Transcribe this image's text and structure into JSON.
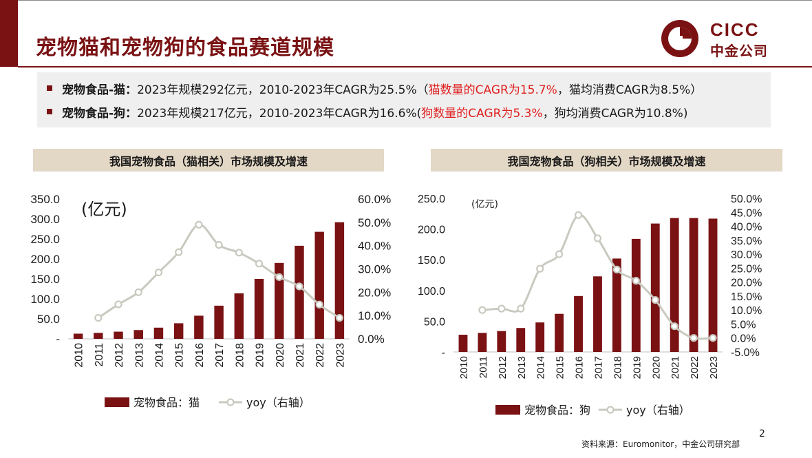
{
  "slide": {
    "title": "宠物猫和宠物狗的食品赛道规模",
    "page_number": "2",
    "source": "资料来源：Euromonitor，中金公司研究部",
    "logo_text": "CICC",
    "logo_subtext": "中金公司"
  },
  "summary": {
    "line1": {
      "label": "宠物食品-猫：",
      "text1": "2023年规模292亿元，2010-2023年CAGR为25.5%（",
      "highlight": "猫数量的CAGR为15.7%",
      "text2": "，猫均消费CAGR为8.5%）"
    },
    "line2": {
      "label": "宠物食品-狗：",
      "text1": "2023年规模217亿元，2010-2023年CAGR为16.6%(",
      "highlight": "狗数量的CAGR为5.3%",
      "text2": "，狗均消费CAGR为10.8%)"
    }
  },
  "colors": {
    "brand": "#7a1214",
    "bar": "#7a1214",
    "line": "#c9c9c0",
    "title_bg": "#e3d7c5",
    "highlight": "#e02020"
  },
  "chart_data": [
    {
      "type": "bar",
      "title": "我国宠物食品（猫相关）市场规模及增速",
      "unit_label": "(亿元)",
      "categories": [
        "2010",
        "2011",
        "2012",
        "2013",
        "2014",
        "2015",
        "2016",
        "2017",
        "2018",
        "2019",
        "2020",
        "2021",
        "2022",
        "2023"
      ],
      "series": [
        {
          "name": "宠物食品：猫",
          "type": "bar",
          "axis": "left",
          "values": [
            13,
            15,
            18,
            22,
            28,
            39,
            58,
            83,
            114,
            150,
            190,
            233,
            268,
            292
          ]
        },
        {
          "name": "yoy（右轴）",
          "type": "line",
          "axis": "right",
          "values": [
            null,
            0.09,
            0.148,
            0.2,
            0.285,
            0.372,
            0.49,
            0.403,
            0.37,
            0.323,
            0.265,
            0.225,
            0.147,
            0.09
          ]
        }
      ],
      "left_axis": {
        "ylim": [
          0,
          350
        ],
        "ticks": [
          "-",
          "50.0",
          "100.0",
          "150.0",
          "200.0",
          "250.0",
          "300.0",
          "350.0"
        ]
      },
      "right_axis": {
        "ylim": [
          0,
          0.6
        ],
        "ticks": [
          "0.0%",
          "10.0%",
          "20.0%",
          "30.0%",
          "40.0%",
          "50.0%",
          "60.0%"
        ]
      },
      "legend": "bottom"
    },
    {
      "type": "bar",
      "title": "我国宠物食品（狗相关）市场规模及增速",
      "unit_label": "(亿元)",
      "categories": [
        "2010",
        "2011",
        "2012",
        "2013",
        "2014",
        "2015",
        "2016",
        "2017",
        "2018",
        "2019",
        "2020",
        "2021",
        "2022",
        "2023"
      ],
      "series": [
        {
          "name": "宠物食品：狗",
          "type": "bar",
          "axis": "left",
          "values": [
            28,
            31,
            34,
            39,
            48,
            62,
            91,
            123,
            152,
            184,
            209,
            218,
            218,
            217
          ]
        },
        {
          "name": "yoy（右轴）",
          "type": "line",
          "axis": "right",
          "values": [
            null,
            0.1,
            0.105,
            0.105,
            0.248,
            0.3,
            0.44,
            0.357,
            0.245,
            0.205,
            0.136,
            0.042,
            0.0,
            0.0
          ]
        }
      ],
      "left_axis": {
        "ylim": [
          0,
          250
        ],
        "ticks": [
          "-",
          "50.0",
          "100.0",
          "150.0",
          "200.0",
          "250.0"
        ]
      },
      "right_axis": {
        "ylim": [
          -0.05,
          0.5
        ],
        "ticks": [
          "-5.0%",
          "0.0%",
          "5.0%",
          "10.0%",
          "15.0%",
          "20.0%",
          "25.0%",
          "30.0%",
          "35.0%",
          "40.0%",
          "45.0%",
          "50.0%"
        ]
      },
      "legend": "bottom"
    }
  ]
}
